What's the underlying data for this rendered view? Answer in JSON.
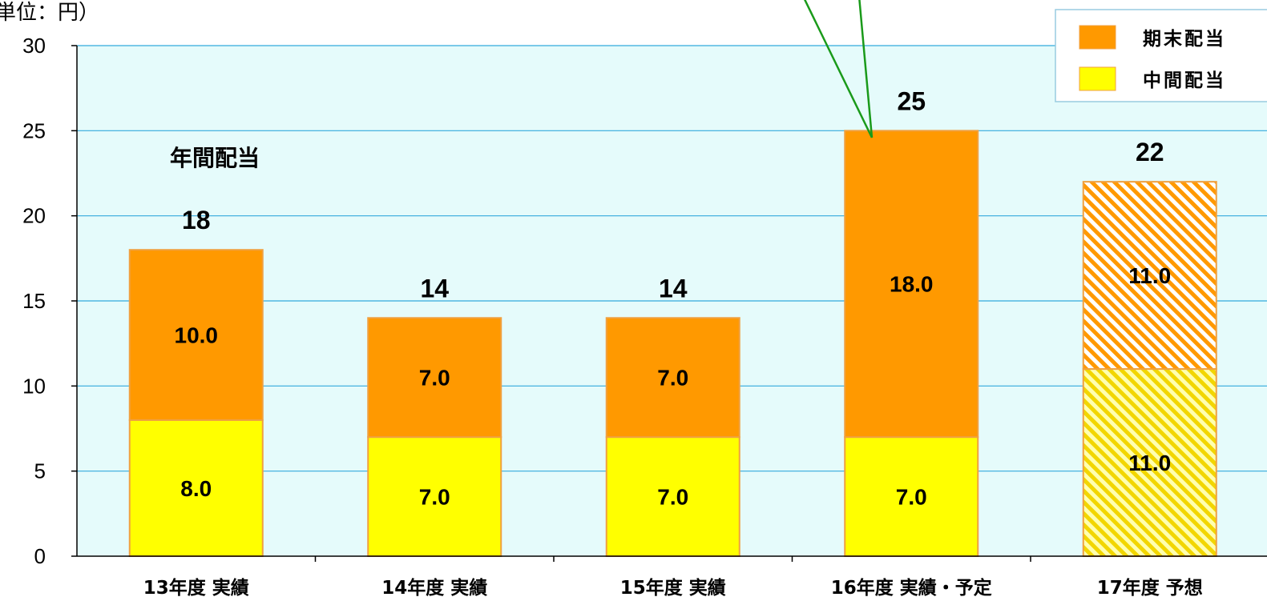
{
  "chart_data": {
    "type": "bar",
    "stacked": true,
    "unit_label": "単位：円）",
    "annual_label": "年間配当",
    "categories": [
      "13年度 実績",
      "14年度 実績",
      "15年度 実績",
      "16年度 実績・予定",
      "17年度 予想"
    ],
    "series": [
      {
        "name": "中間配当",
        "values": [
          8.0,
          7.0,
          7.0,
          7.0,
          11.0
        ],
        "labels": [
          "8.0",
          "7.0",
          "7.0",
          "7.0",
          "11.0"
        ],
        "color": "#FFFF00"
      },
      {
        "name": "期末配当",
        "values": [
          10.0,
          7.0,
          7.0,
          18.0,
          11.0
        ],
        "labels": [
          "10.0",
          "7.0",
          "7.0",
          "18.0",
          "11.0"
        ],
        "color": "#FF9900"
      }
    ],
    "totals": [
      "18",
      "14",
      "14",
      "25",
      "22"
    ],
    "forecast_categories": [
      4
    ],
    "ylim": [
      0,
      30
    ],
    "yticks": [
      0,
      5,
      10,
      15,
      20,
      25,
      30
    ],
    "grid": true,
    "legend_position": "top-right",
    "plot_background": "#E5FBFB",
    "gridline_color": "#33AADD",
    "bar_edge_color": "#F0A040",
    "callout_color": "#1A9A1A"
  }
}
